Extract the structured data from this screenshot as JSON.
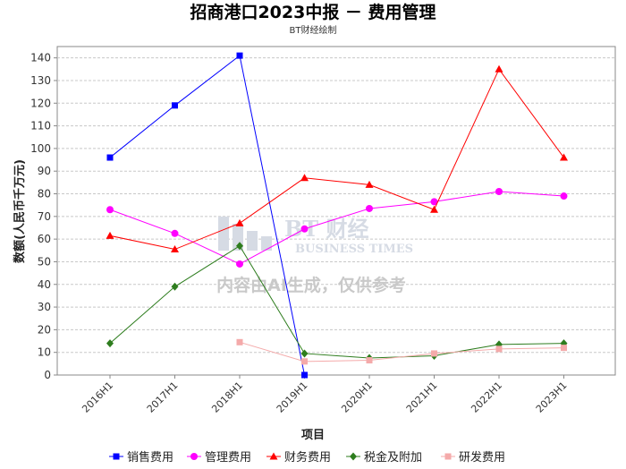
{
  "chart_data": {
    "type": "line",
    "title": "招商港口2023中报 － 费用管理",
    "subtitle": "BT财经绘制",
    "xlabel": "项目",
    "ylabel": "数额(人民币千万元)",
    "ylim": [
      0,
      145
    ],
    "yticks": [
      0,
      10,
      20,
      30,
      40,
      50,
      60,
      70,
      80,
      90,
      100,
      110,
      120,
      130,
      140
    ],
    "grid": true,
    "legend_position": "bottom",
    "categories": [
      "2016H1",
      "2017H1",
      "2018H1",
      "2019H1",
      "2020H1",
      "2021H1",
      "2022H1",
      "2023H1"
    ],
    "series": [
      {
        "name": "销售费用",
        "color": "#0000ff",
        "marker": "square",
        "values": [
          96,
          119,
          141,
          0,
          null,
          null,
          null,
          null
        ]
      },
      {
        "name": "管理费用",
        "color": "#ff00ff",
        "marker": "circle",
        "values": [
          73,
          62.5,
          49,
          64.5,
          73.5,
          76.5,
          81,
          79
        ]
      },
      {
        "name": "财务费用",
        "color": "#ff0000",
        "marker": "triangle",
        "values": [
          61.5,
          55.5,
          67,
          87,
          84,
          73,
          135,
          96
        ]
      },
      {
        "name": "税金及附加",
        "color": "#2e7d1e",
        "marker": "diamond",
        "values": [
          14,
          39,
          57,
          9.5,
          7.5,
          8.5,
          13.5,
          14
        ]
      },
      {
        "name": "研发费用",
        "color": "#f4aaaa",
        "marker": "square",
        "values": [
          null,
          null,
          14.5,
          6,
          6.5,
          9.5,
          11.5,
          12
        ]
      }
    ]
  },
  "watermark": {
    "logo_text": "BT 财经",
    "logo_sub": "BUSINESS TIMES",
    "notice": "内容由AI生成，仅供参考"
  }
}
